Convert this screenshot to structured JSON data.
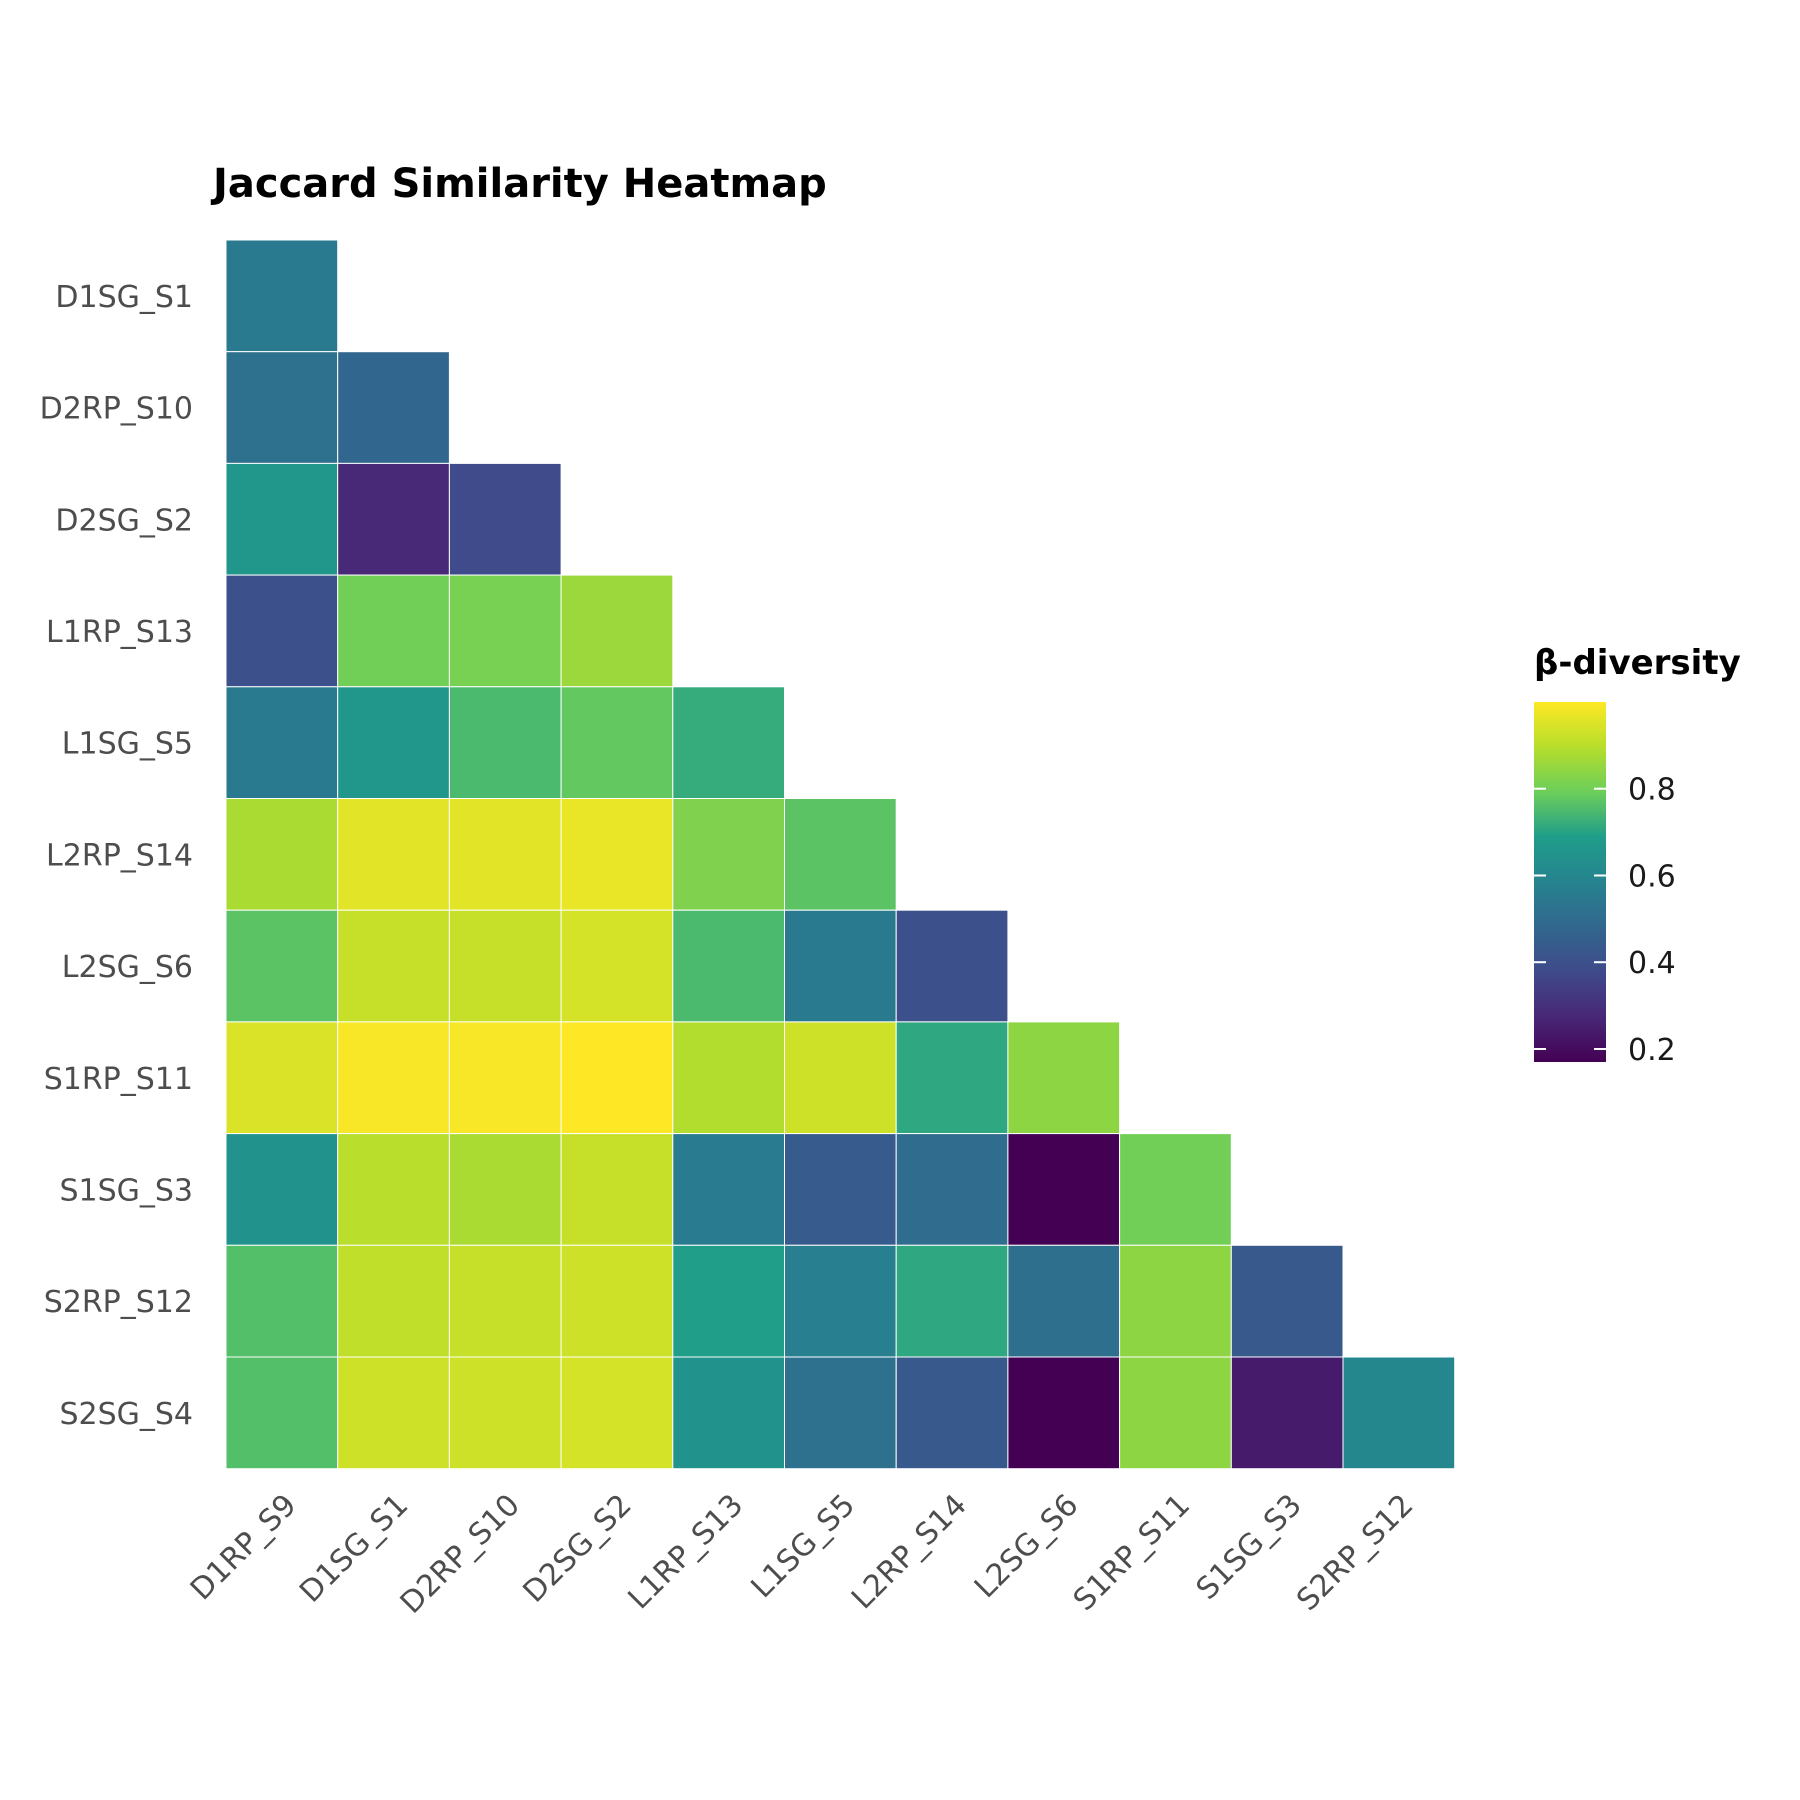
{
  "chart_data": {
    "type": "heatmap",
    "title": "Jaccard Similarity Heatmap",
    "x_categories": [
      "D1RP_S9",
      "D1SG_S1",
      "D2RP_S10",
      "D2SG_S2",
      "L1RP_S13",
      "L1SG_S5",
      "L2RP_S14",
      "L2SG_S6",
      "S1RP_S11",
      "S1SG_S3",
      "S2RP_S12"
    ],
    "y_categories": [
      "D1SG_S1",
      "D2RP_S10",
      "D2SG_S2",
      "L1RP_S13",
      "L1SG_S5",
      "L2RP_S14",
      "L2SG_S6",
      "S1RP_S11",
      "S1SG_S3",
      "S2RP_S12",
      "S2SG_S4"
    ],
    "values": [
      [
        0.55
      ],
      [
        0.52,
        0.48
      ],
      [
        0.66,
        0.28,
        0.38
      ],
      [
        0.4,
        0.8,
        0.81,
        0.86
      ],
      [
        0.55,
        0.66,
        0.75,
        0.78,
        0.72
      ],
      [
        0.88,
        0.96,
        0.96,
        0.97,
        0.82,
        0.77
      ],
      [
        0.77,
        0.92,
        0.92,
        0.94,
        0.75,
        0.55,
        0.4
      ],
      [
        0.95,
        0.99,
        0.99,
        1.0,
        0.89,
        0.93,
        0.71,
        0.84
      ],
      [
        0.65,
        0.9,
        0.88,
        0.92,
        0.56,
        0.44,
        0.5,
        0.17,
        0.8
      ],
      [
        0.76,
        0.91,
        0.92,
        0.93,
        0.69,
        0.57,
        0.71,
        0.51,
        0.84,
        0.43
      ],
      [
        0.76,
        0.93,
        0.93,
        0.94,
        0.65,
        0.52,
        0.43,
        0.17,
        0.84,
        0.24,
        0.6
      ]
    ],
    "legend": {
      "title": "β-diversity",
      "range": [
        0.17,
        1.0
      ],
      "ticks": [
        "0.2",
        "0.4",
        "0.6",
        "0.8"
      ],
      "tick_values": [
        0.2,
        0.4,
        0.6,
        0.8
      ],
      "placement": "right",
      "colormap": "viridis"
    },
    "grid": false
  },
  "colors": {
    "viridis_stops": [
      "#440154",
      "#482777",
      "#3f4a8a",
      "#31678e",
      "#26838f",
      "#1f9d8a",
      "#6cce5a",
      "#b6de2b",
      "#fee825"
    ],
    "cell_border": "#ffffff"
  }
}
